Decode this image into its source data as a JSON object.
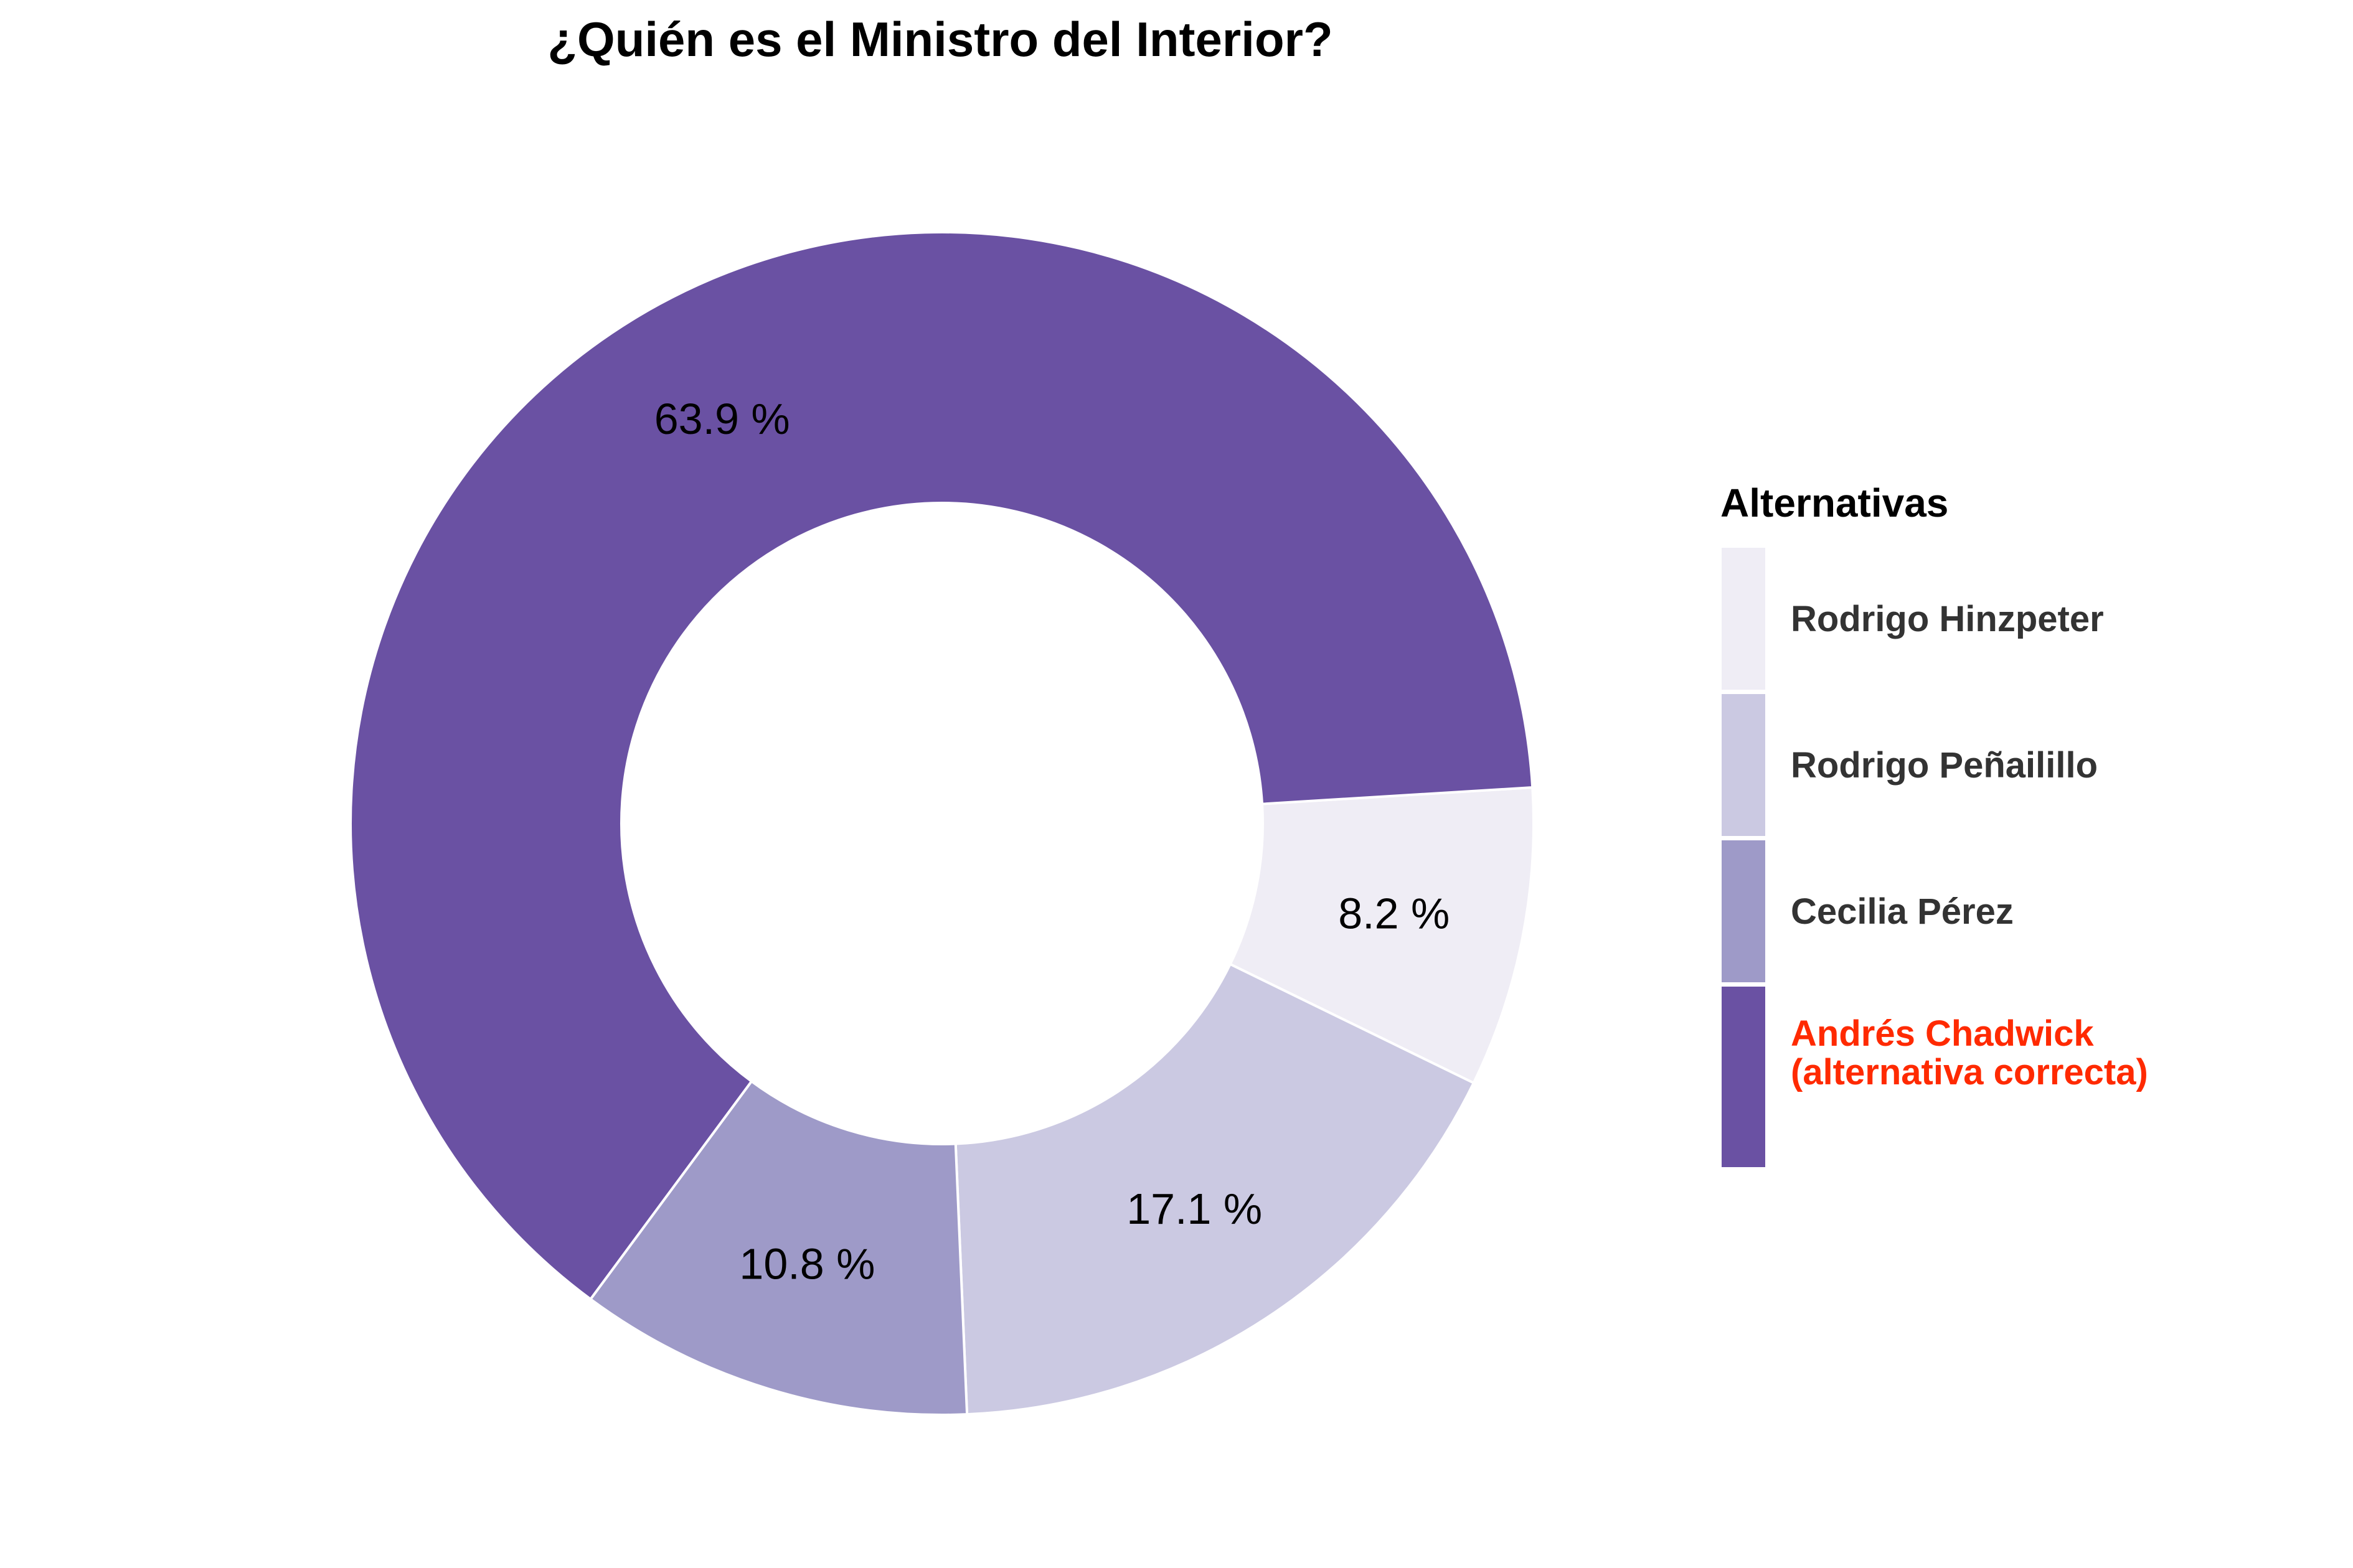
{
  "chart_data": {
    "type": "pie",
    "title": "¿Quién es el Ministro del Interior?",
    "categories": [
      "Rodrigo Hinzpeter",
      "Rodrigo Peñailillo",
      "Cecilia Pérez",
      "Andrés Chadwick (alternativa correcta)"
    ],
    "values": [
      8.2,
      17.1,
      10.8,
      63.9
    ],
    "value_labels": [
      "8.2 %",
      "17.1 %",
      "10.8 %",
      "63.9 %"
    ],
    "colors": [
      "#efedf5",
      "#cbc9e2",
      "#9e9ac8",
      "#6a51a3"
    ],
    "donut": true,
    "legend": {
      "title": "Alternativas",
      "placement": "right",
      "items": [
        {
          "label": "Rodrigo Hinzpeter",
          "color": "#efedf5"
        },
        {
          "label": "Rodrigo Peñailillo",
          "color": "#cbc9e2"
        },
        {
          "label": "Cecilia Pérez",
          "color": "#9e9ac8"
        },
        {
          "label": "Andrés Chadwick",
          "label2": "(alternativa correcta)",
          "color": "#6a51a3",
          "label_color": "#ff2a00"
        }
      ]
    }
  }
}
